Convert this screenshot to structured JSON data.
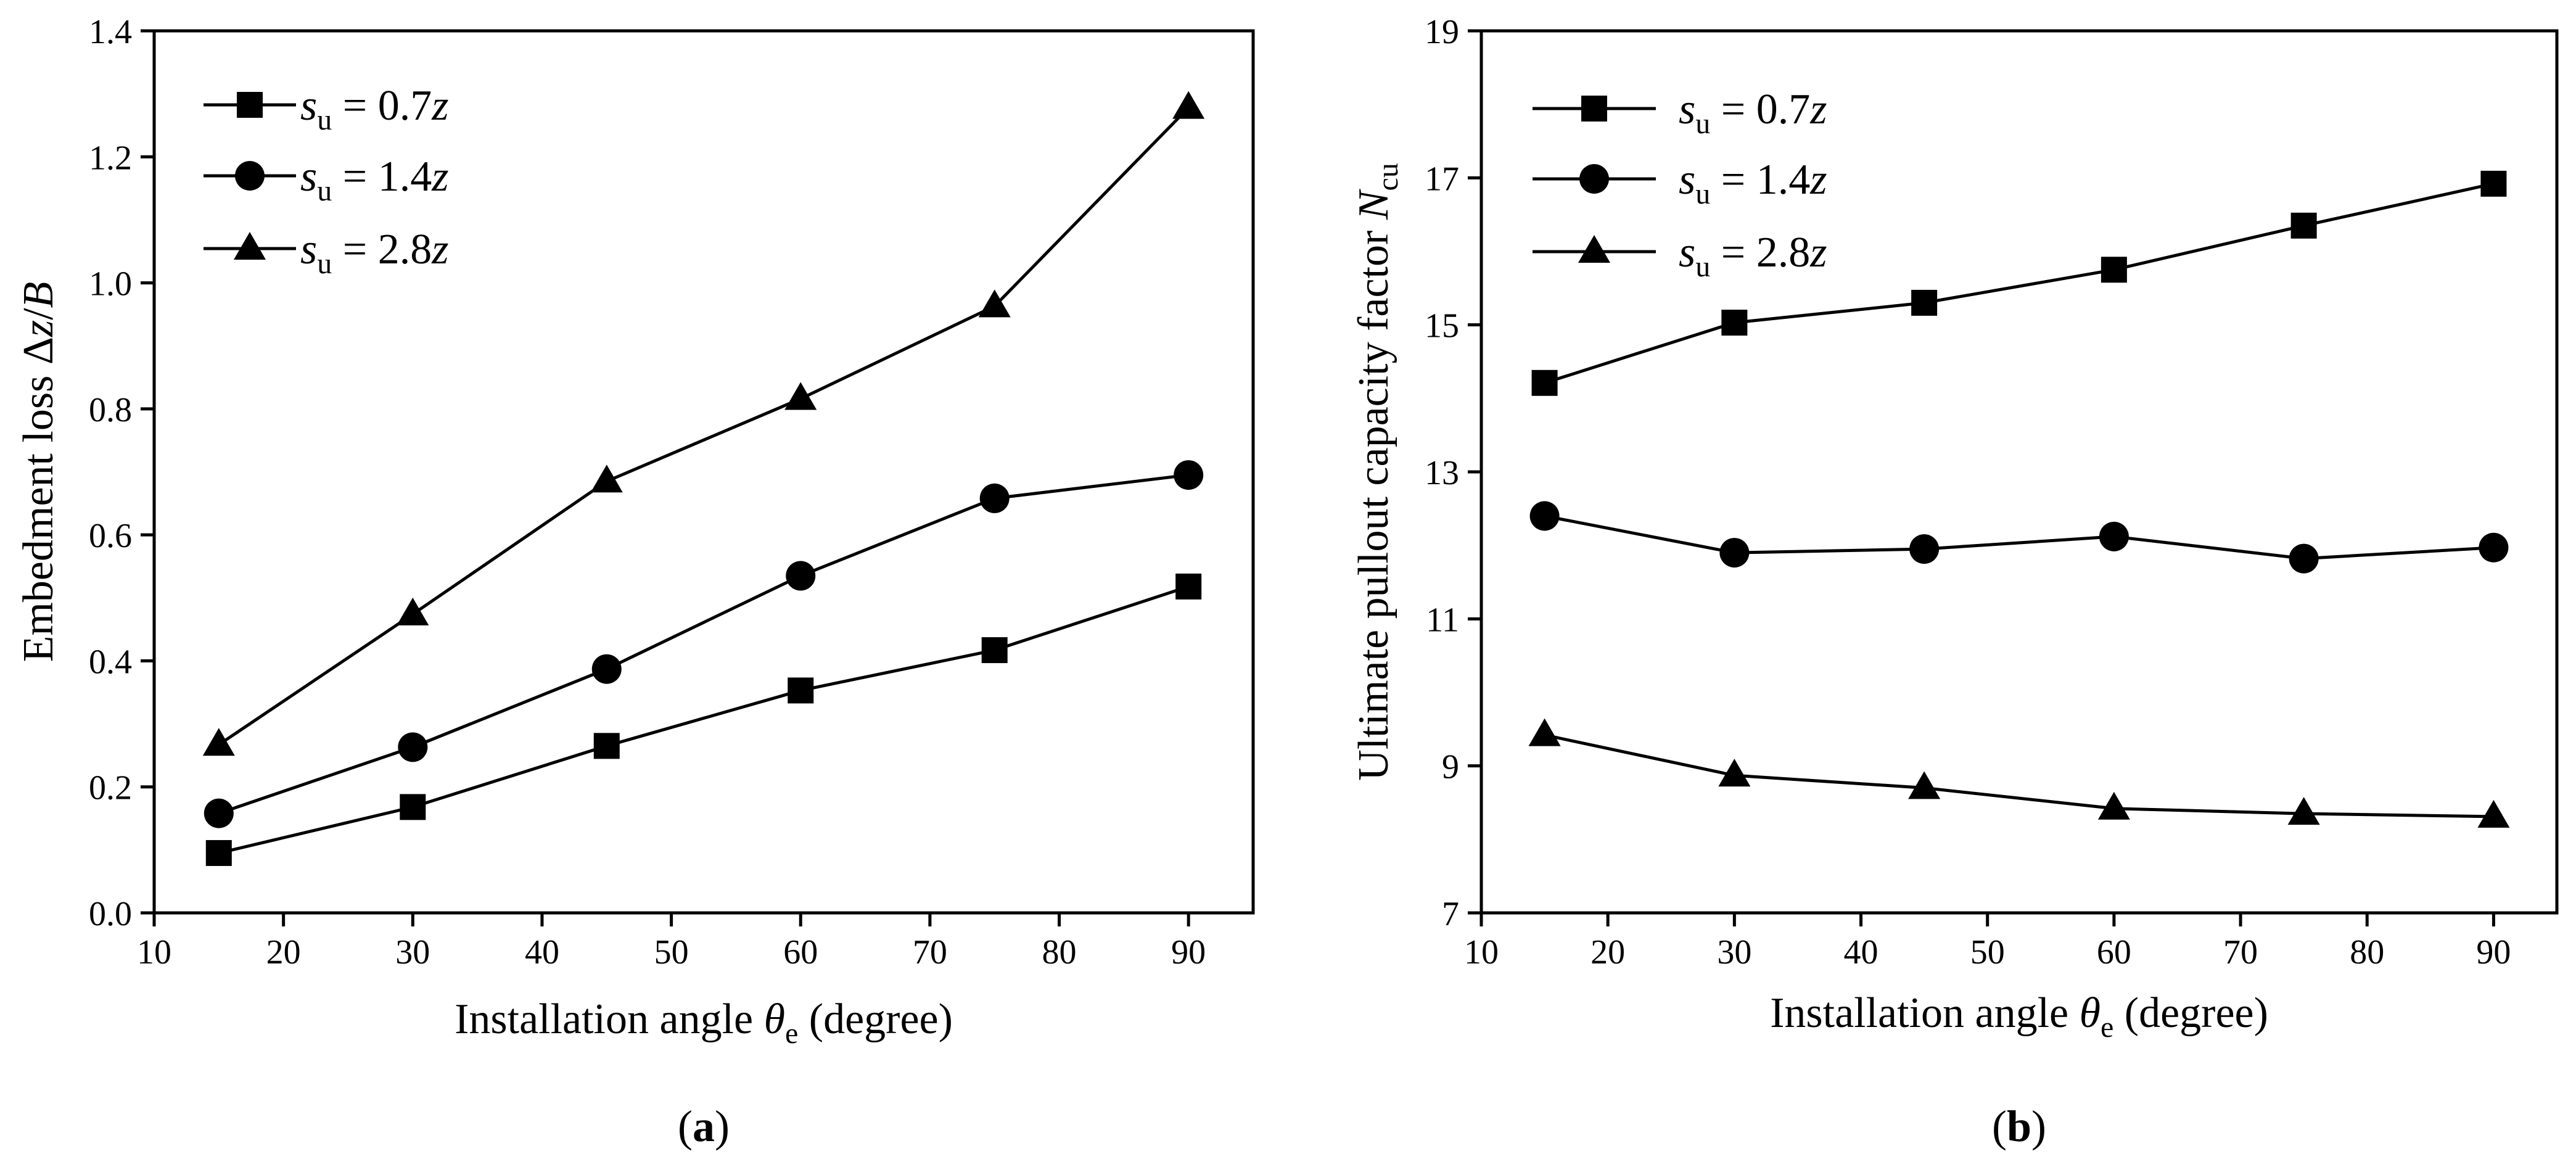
{
  "chart_data": [
    {
      "type": "line",
      "panel_label": "a",
      "xlabel": "Installation angle θe (degree)",
      "xlabel_parts": {
        "pre": "Installation angle ",
        "sym": "θ",
        "sub": "e",
        "post": " (degree)"
      },
      "ylabel": "Embedment loss Δz/B",
      "ylabel_parts": {
        "pre": "Embedment loss Δ",
        "z": "z",
        "slash": "/",
        "b": "B"
      },
      "xlim": [
        10,
        95
      ],
      "ylim": [
        0,
        1.4
      ],
      "xticks": [
        10,
        20,
        30,
        40,
        50,
        60,
        70,
        80,
        90
      ],
      "xtick_labels": [
        "10",
        "20",
        "30",
        "40",
        "50",
        "60",
        "70",
        "80",
        "90"
      ],
      "yticks": [
        0,
        0.2,
        0.4,
        0.6,
        0.8,
        1.0,
        1.2,
        1.4
      ],
      "ytick_labels": [
        "0.0",
        "0.2",
        "0.4",
        "0.6",
        "0.8",
        "1.0",
        "1.2",
        "1.4"
      ],
      "legend_position": "top-left",
      "x": [
        15,
        30,
        45,
        60,
        75,
        90
      ],
      "series": [
        {
          "name": "su = 0.7z",
          "label_parts": {
            "s": "s",
            "sub": "u",
            "mid": " = 0.7",
            "z": "z"
          },
          "marker": "square",
          "values": [
            0.095,
            0.168,
            0.265,
            0.353,
            0.417,
            0.518
          ]
        },
        {
          "name": "su = 1.4z",
          "label_parts": {
            "s": "s",
            "sub": "u",
            "mid": " = 1.4",
            "z": "z"
          },
          "marker": "circle",
          "values": [
            0.158,
            0.263,
            0.387,
            0.535,
            0.658,
            0.695
          ]
        },
        {
          "name": "su = 2.8z",
          "label_parts": {
            "s": "s",
            "sub": "u",
            "mid": " = 2.8",
            "z": "z"
          },
          "marker": "triangle",
          "values": [
            0.267,
            0.474,
            0.685,
            0.816,
            0.963,
            1.278
          ]
        }
      ]
    },
    {
      "type": "line",
      "panel_label": "b",
      "xlabel": "Installation angle θe (degree)",
      "xlabel_parts": {
        "pre": "Installation angle ",
        "sym": "θ",
        "sub": "e",
        "post": " (degree)"
      },
      "ylabel": "Ultimate pullout capacity factor Ncu",
      "ylabel_parts": {
        "pre": "Ultimate pullout capacity factor ",
        "n": "N",
        "sub": "cu"
      },
      "xlim": [
        10,
        95
      ],
      "ylim": [
        7,
        19
      ],
      "xticks": [
        10,
        20,
        30,
        40,
        50,
        60,
        70,
        80,
        90
      ],
      "xtick_labels": [
        "10",
        "20",
        "30",
        "40",
        "50",
        "60",
        "70",
        "80",
        "90"
      ],
      "yticks": [
        7,
        9,
        11,
        13,
        15,
        17,
        19
      ],
      "ytick_labels": [
        "7",
        "9",
        "11",
        "13",
        "15",
        "17",
        "19"
      ],
      "legend_position": "top-left",
      "x": [
        15,
        30,
        45,
        60,
        75,
        90
      ],
      "series": [
        {
          "name": "su = 0.7z",
          "label_parts": {
            "s": "s",
            "sub": "u",
            "mid": " = 0.7",
            "z": "z"
          },
          "marker": "square",
          "values": [
            14.21,
            15.03,
            15.3,
            15.75,
            16.35,
            16.92
          ]
        },
        {
          "name": "su = 1.4z",
          "label_parts": {
            "s": "s",
            "sub": "u",
            "mid": " = 1.4",
            "z": "z"
          },
          "marker": "circle",
          "values": [
            12.4,
            11.9,
            11.95,
            12.12,
            11.82,
            11.97
          ]
        },
        {
          "name": "su = 2.8z",
          "label_parts": {
            "s": "s",
            "sub": "u",
            "mid": " = 2.8",
            "z": "z"
          },
          "marker": "triangle",
          "values": [
            9.42,
            8.87,
            8.7,
            8.42,
            8.35,
            8.31
          ]
        }
      ]
    }
  ]
}
